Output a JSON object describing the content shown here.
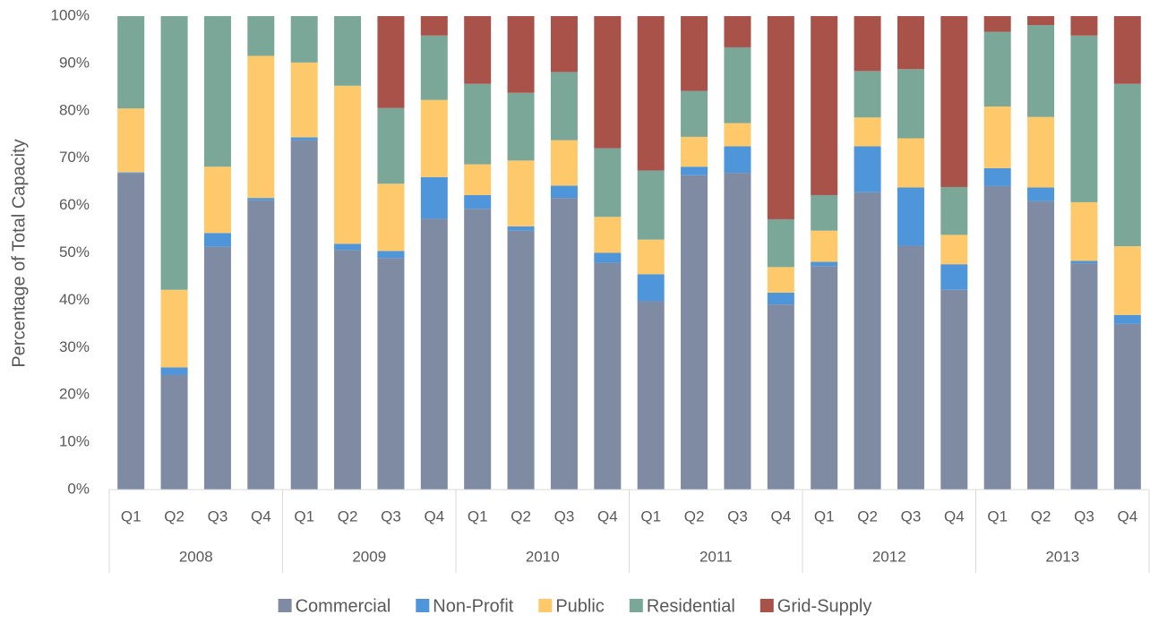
{
  "chart_data": {
    "type": "stacked_bar",
    "y_label": "Percentage of Total Capacity",
    "categories": [
      "Q1",
      "Q2",
      "Q3",
      "Q4",
      "Q1",
      "Q2",
      "Q3",
      "Q4",
      "Q1",
      "Q2",
      "Q3",
      "Q4",
      "Q1",
      "Q2",
      "Q3",
      "Q4",
      "Q1",
      "Q2",
      "Q3",
      "Q4",
      "Q1",
      "Q2",
      "Q3",
      "Q4"
    ],
    "category_groups": [
      "2008",
      "2009",
      "2010",
      "2011",
      "2012",
      "2013"
    ],
    "series": [
      {
        "name": "Commercial",
        "color": "#7f8aa3",
        "values": [
          66.8,
          24.2,
          51.3,
          61.1,
          73.8,
          50.6,
          48.9,
          57.2,
          59.3,
          54.7,
          61.6,
          47.9,
          39.8,
          66.4,
          66.9,
          39.1,
          47.2,
          62.8,
          51.5,
          42.2,
          64.1,
          60.9,
          47.8,
          35.0
        ]
      },
      {
        "name": "Non-Profit",
        "color": "#4e95d9",
        "values": [
          0.2,
          1.6,
          2.9,
          0.5,
          0.6,
          1.3,
          1.5,
          8.8,
          2.9,
          0.9,
          2.6,
          2.1,
          5.7,
          1.8,
          5.6,
          2.5,
          0.9,
          9.7,
          12.3,
          5.4,
          3.8,
          2.9,
          0.5,
          1.9
        ]
      },
      {
        "name": "Public",
        "color": "#fdc96a",
        "values": [
          13.5,
          16.4,
          14.0,
          30.0,
          15.8,
          33.4,
          14.2,
          16.3,
          6.5,
          13.9,
          9.6,
          7.6,
          7.3,
          6.3,
          4.9,
          5.4,
          6.6,
          6.1,
          10.4,
          6.2,
          13.0,
          14.9,
          12.4,
          14.5
        ]
      },
      {
        "name": "Residential",
        "color": "#7aa797",
        "values": [
          19.5,
          57.8,
          31.8,
          8.4,
          9.8,
          14.7,
          16.0,
          13.6,
          17.0,
          14.3,
          14.4,
          14.5,
          14.6,
          9.7,
          16.0,
          10.1,
          7.5,
          9.8,
          14.6,
          10.1,
          15.8,
          19.4,
          35.2,
          34.3
        ]
      },
      {
        "name": "Grid-Supply",
        "color": "#a9524a",
        "values": [
          0,
          0,
          0,
          0,
          0,
          0,
          19.4,
          4.1,
          14.3,
          16.2,
          11.8,
          27.9,
          32.6,
          15.8,
          6.6,
          42.9,
          37.8,
          11.6,
          11.2,
          36.1,
          3.3,
          1.9,
          4.1,
          14.3
        ]
      }
    ],
    "ylim": [
      0,
      100
    ],
    "yticks": [
      {
        "value": 0,
        "label": "0%"
      },
      {
        "value": 10,
        "label": "10%"
      },
      {
        "value": 20,
        "label": "20%"
      },
      {
        "value": 30,
        "label": "30%"
      },
      {
        "value": 40,
        "label": "40%"
      },
      {
        "value": 50,
        "label": "50%"
      },
      {
        "value": 60,
        "label": "60%"
      },
      {
        "value": 70,
        "label": "70%"
      },
      {
        "value": 80,
        "label": "80%"
      },
      {
        "value": 90,
        "label": "90%"
      },
      {
        "value": 100,
        "label": "100%"
      }
    ],
    "grid": false,
    "legend": "bottom"
  }
}
